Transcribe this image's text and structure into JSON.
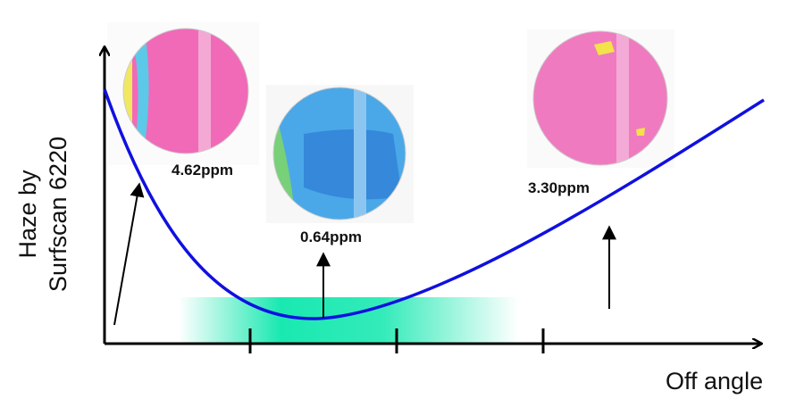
{
  "axes": {
    "y_label": [
      "Haze by",
      "Surfscan 6220"
    ],
    "x_label": "Off angle"
  },
  "wafers": [
    {
      "label": "4.62ppm"
    },
    {
      "label": "0.64ppm"
    },
    {
      "label": "3.30ppm"
    }
  ]
}
